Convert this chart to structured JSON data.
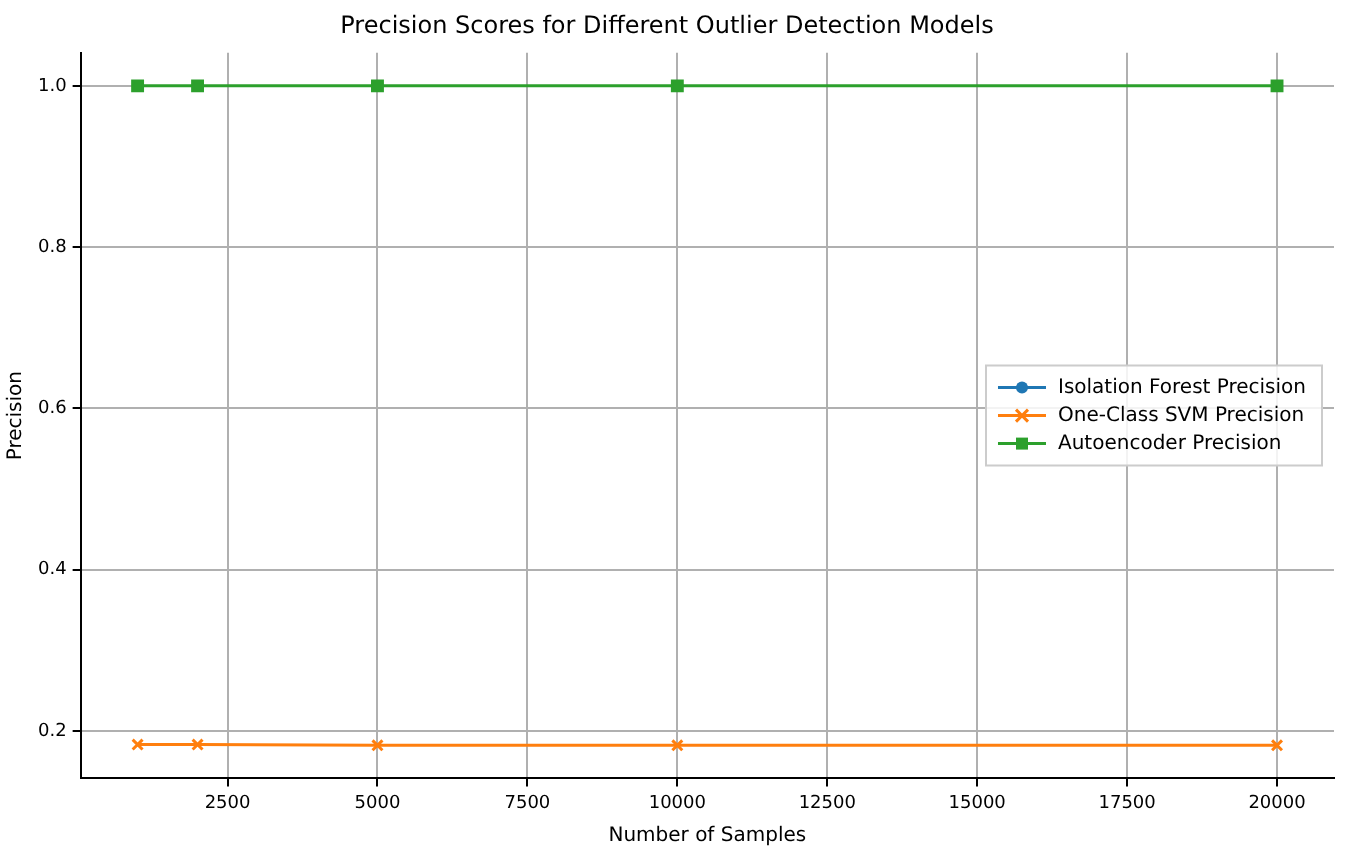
{
  "chart_data": {
    "type": "line",
    "title": "Precision Scores for Different Outlier Detection Models",
    "xlabel": "Number of Samples",
    "ylabel": "Precision",
    "x": [
      1000,
      2000,
      5000,
      10000,
      20000
    ],
    "series": [
      {
        "name": "Isolation Forest Precision",
        "color": "#1f77b4",
        "marker": "circle",
        "values": [
          null,
          null,
          null,
          null,
          null
        ]
      },
      {
        "name": "One-Class SVM Precision",
        "color": "#ff7f0e",
        "marker": "cross",
        "values": [
          0.183,
          0.183,
          0.182,
          0.182,
          0.182
        ]
      },
      {
        "name": "Autoencoder Precision",
        "color": "#2ca02c",
        "marker": "square",
        "values": [
          1.0,
          1.0,
          1.0,
          1.0,
          1.0
        ]
      }
    ],
    "xlim": [
      50,
      20950
    ],
    "xticks": [
      2500,
      5000,
      7500,
      10000,
      12500,
      15000,
      17500,
      20000
    ],
    "ylim": [
      0.141,
      1.041
    ],
    "yticks": [
      {
        "value": 0.2,
        "label": "0.2"
      },
      {
        "value": 0.4,
        "label": "0.4"
      },
      {
        "value": 0.6,
        "label": "0.6"
      },
      {
        "value": 0.8,
        "label": "0.8"
      },
      {
        "value": 1.0,
        "label": "1.0"
      }
    ],
    "grid": true,
    "legend": "center right",
    "line_style": "solid"
  }
}
